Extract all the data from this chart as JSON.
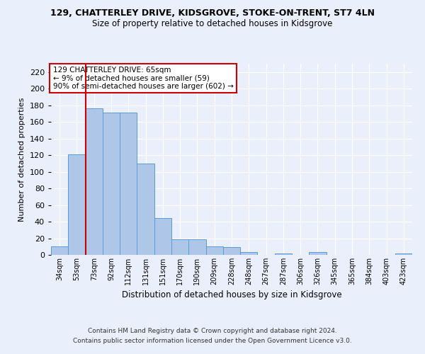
{
  "title1": "129, CHATTERLEY DRIVE, KIDSGROVE, STOKE-ON-TRENT, ST7 4LN",
  "title2": "Size of property relative to detached houses in Kidsgrove",
  "xlabel": "Distribution of detached houses by size in Kidsgrove",
  "ylabel": "Number of detached properties",
  "footer1": "Contains HM Land Registry data © Crown copyright and database right 2024.",
  "footer2": "Contains public sector information licensed under the Open Government Licence v3.0.",
  "annotation_line1": "129 CHATTERLEY DRIVE: 65sqm",
  "annotation_line2": "← 9% of detached houses are smaller (59)",
  "annotation_line3": "90% of semi-detached houses are larger (602) →",
  "bar_labels": [
    "34sqm",
    "53sqm",
    "73sqm",
    "92sqm",
    "112sqm",
    "131sqm",
    "151sqm",
    "170sqm",
    "190sqm",
    "209sqm",
    "228sqm",
    "248sqm",
    "267sqm",
    "287sqm",
    "306sqm",
    "326sqm",
    "345sqm",
    "365sqm",
    "384sqm",
    "403sqm",
    "423sqm"
  ],
  "bar_values": [
    10,
    121,
    176,
    171,
    171,
    110,
    44,
    19,
    19,
    10,
    9,
    3,
    0,
    2,
    0,
    3,
    0,
    0,
    0,
    0,
    2
  ],
  "bar_color": "#aec6e8",
  "bar_edge_color": "#5b9bd5",
  "vline_x": 1.5,
  "vline_color": "#cc0000",
  "ylim": [
    0,
    230
  ],
  "yticks": [
    0,
    20,
    40,
    60,
    80,
    100,
    120,
    140,
    160,
    180,
    200,
    220
  ],
  "bg_color": "#eaf0fb",
  "annotation_box_color": "#ffffff",
  "annotation_border_color": "#cc0000",
  "grid_color": "#ffffff"
}
